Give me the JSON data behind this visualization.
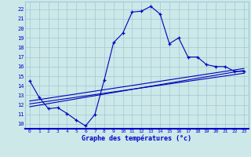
{
  "xlabel": "Graphe des températures (°c)",
  "bg_color": "#cce8e8",
  "grid_color": "#a0c8d8",
  "line_color": "#0000bb",
  "axis_color": "#0000cc",
  "x_ticks": [
    0,
    1,
    2,
    3,
    4,
    5,
    6,
    7,
    8,
    9,
    10,
    11,
    12,
    13,
    14,
    15,
    16,
    17,
    18,
    19,
    20,
    21,
    22,
    23
  ],
  "y_ticks": [
    10,
    11,
    12,
    13,
    14,
    15,
    16,
    17,
    18,
    19,
    20,
    21,
    22
  ],
  "ylim": [
    9.5,
    22.8
  ],
  "xlim": [
    -0.5,
    23.5
  ],
  "curve1_x": [
    0,
    1,
    2,
    3,
    4,
    5,
    6,
    7,
    8,
    9,
    10,
    11,
    12,
    13,
    14,
    15,
    16,
    17,
    18,
    19,
    20,
    21,
    22,
    23
  ],
  "curve1_y": [
    14.5,
    12.8,
    11.6,
    11.7,
    11.1,
    10.4,
    9.8,
    11.0,
    14.6,
    18.5,
    19.5,
    21.7,
    21.8,
    22.3,
    21.5,
    18.4,
    19.0,
    17.0,
    17.0,
    16.2,
    16.0,
    16.0,
    15.5,
    15.5
  ],
  "curve2_x": [
    0,
    23
  ],
  "curve2_y": [
    11.8,
    15.6
  ],
  "curve3_x": [
    0,
    23
  ],
  "curve3_y": [
    12.1,
    15.3
  ],
  "curve4_x": [
    0,
    23
  ],
  "curve4_y": [
    12.4,
    15.8
  ]
}
